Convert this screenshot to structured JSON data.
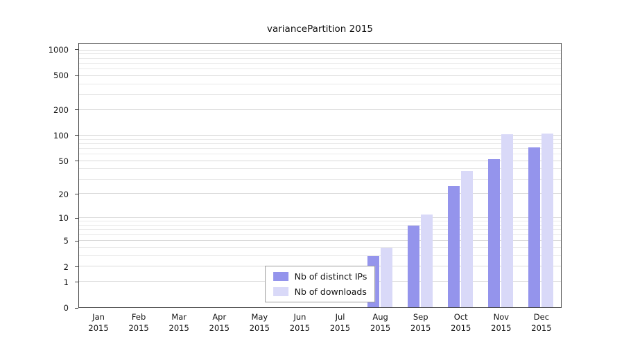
{
  "chart_data": {
    "type": "bar",
    "title": "variancePartition 2015",
    "xlabel": "",
    "ylabel": "",
    "categories": [
      {
        "month": "Jan",
        "year": "2015"
      },
      {
        "month": "Feb",
        "year": "2015"
      },
      {
        "month": "Mar",
        "year": "2015"
      },
      {
        "month": "Apr",
        "year": "2015"
      },
      {
        "month": "May",
        "year": "2015"
      },
      {
        "month": "Jun",
        "year": "2015"
      },
      {
        "month": "Jul",
        "year": "2015"
      },
      {
        "month": "Aug",
        "year": "2015"
      },
      {
        "month": "Sep",
        "year": "2015"
      },
      {
        "month": "Oct",
        "year": "2015"
      },
      {
        "month": "Nov",
        "year": "2015"
      },
      {
        "month": "Dec",
        "year": "2015"
      }
    ],
    "series": [
      {
        "name": "Nb of distinct IPs",
        "color": "#9494ec",
        "values": [
          0,
          0,
          0,
          0,
          0,
          0,
          0,
          3,
          8,
          25,
          53,
          73
        ]
      },
      {
        "name": "Nb of downloads",
        "color": "#d9d9f8",
        "values": [
          0,
          0,
          0,
          0,
          0,
          0,
          0,
          4,
          11,
          38,
          104,
          105
        ]
      }
    ],
    "y_axis": {
      "scale": "log1p",
      "ticks": [
        0,
        1,
        2,
        5,
        10,
        20,
        50,
        100,
        200,
        500,
        1000
      ],
      "minor_gridlines": [
        3,
        4,
        6,
        7,
        8,
        9,
        30,
        40,
        60,
        70,
        80,
        90,
        300,
        400,
        600,
        700,
        800,
        900
      ],
      "max": 1200
    },
    "legend": {
      "position": "bottom-center"
    },
    "grid": true
  }
}
